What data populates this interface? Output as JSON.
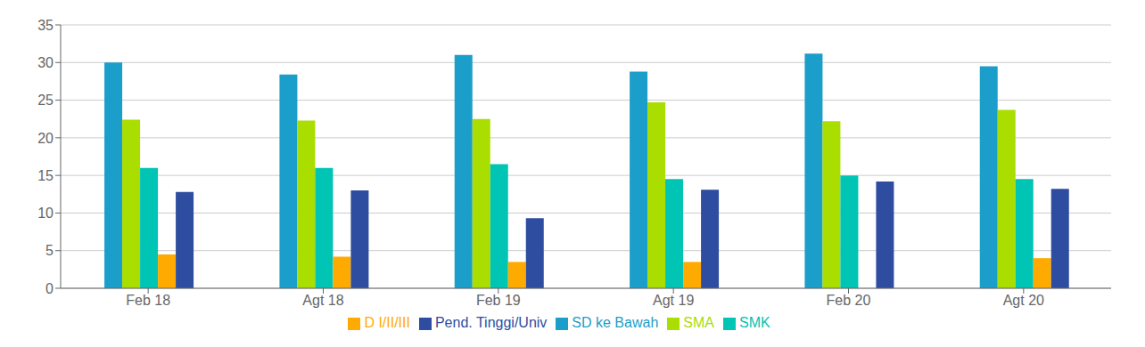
{
  "chart_data": {
    "type": "bar",
    "categories": [
      "Feb 18",
      "Agt 18",
      "Feb 19",
      "Agt 19",
      "Feb 20",
      "Agt 20"
    ],
    "series": [
      {
        "name": "SD ke Bawah",
        "color": "#1B9EC9",
        "values": [
          30.0,
          28.4,
          31.0,
          28.8,
          31.2,
          29.5
        ]
      },
      {
        "name": "SMA",
        "color": "#AADD00",
        "values": [
          22.4,
          22.3,
          22.5,
          24.7,
          22.2,
          23.7
        ]
      },
      {
        "name": "SMK",
        "color": "#00C4B4",
        "values": [
          16.0,
          16.0,
          16.5,
          14.5,
          15.0,
          14.5
        ]
      },
      {
        "name": "D I/II/III",
        "color": "#FFAA00",
        "values": [
          4.5,
          4.2,
          3.5,
          3.5,
          0.0,
          4.0
        ]
      },
      {
        "name": "Pend. Tinggi/Univ",
        "color": "#2E4DA0",
        "values": [
          12.8,
          13.0,
          9.3,
          13.1,
          14.2,
          13.2
        ]
      }
    ],
    "ylim": [
      0,
      35
    ],
    "yticks": [
      0,
      5,
      10,
      15,
      20,
      25,
      30,
      35
    ],
    "grid": true,
    "legend": "bottom"
  }
}
